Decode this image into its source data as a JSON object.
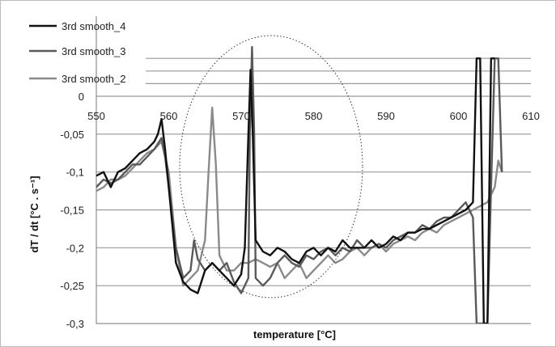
{
  "chart_data": {
    "type": "line",
    "title": "",
    "xlabel": "temperature [°C]",
    "ylabel": "dT / dt [°C . s⁻¹]",
    "xlim": [
      550,
      610
    ],
    "ylim": [
      -0.3,
      0.05
    ],
    "x_ticks": [
      550,
      560,
      570,
      580,
      590,
      600,
      610
    ],
    "y_ticks": [
      0,
      -0.05,
      -0.1,
      -0.15,
      -0.2,
      -0.25,
      -0.3
    ],
    "x_tick_labels": [
      "550",
      "560",
      "570",
      "580",
      "590",
      "600",
      "610"
    ],
    "y_tick_labels": [
      "0",
      "-0,05",
      "-0,1",
      "-0,15",
      "-0,2",
      "-0,25",
      "-0,3"
    ],
    "grid": "horizontal",
    "legend_position": "top-left",
    "annotation": "dotted ellipse around 561–588 °C",
    "series": [
      {
        "name": "3rd smooth_4",
        "color": "#111111",
        "x": [
          550,
          551,
          552,
          553,
          554,
          555,
          556,
          557,
          558,
          558.5,
          559,
          559.5,
          560,
          561,
          562,
          562.5,
          563,
          564,
          565,
          566,
          567,
          568,
          569,
          570,
          570.5,
          571,
          571.3,
          571.6,
          572,
          573,
          574,
          575,
          576,
          577,
          578,
          579,
          580,
          581,
          582,
          583,
          584,
          585,
          586,
          587,
          588,
          589,
          590,
          591,
          592,
          593,
          594,
          595,
          596,
          597,
          598,
          599,
          600,
          601,
          602,
          602.5,
          603,
          603.5,
          604,
          604.5,
          605
        ],
        "y": [
          -0.105,
          -0.1,
          -0.12,
          -0.1,
          -0.095,
          -0.085,
          -0.075,
          -0.07,
          -0.06,
          -0.05,
          -0.03,
          -0.07,
          -0.12,
          -0.22,
          -0.245,
          -0.25,
          -0.255,
          -0.26,
          -0.23,
          -0.22,
          -0.23,
          -0.24,
          -0.25,
          -0.235,
          -0.2,
          -0.05,
          0.035,
          -0.05,
          -0.19,
          -0.205,
          -0.21,
          -0.2,
          -0.205,
          -0.215,
          -0.22,
          -0.205,
          -0.2,
          -0.21,
          -0.2,
          -0.205,
          -0.19,
          -0.2,
          -0.2,
          -0.2,
          -0.19,
          -0.2,
          -0.195,
          -0.185,
          -0.19,
          -0.18,
          -0.18,
          -0.175,
          -0.175,
          -0.17,
          -0.165,
          -0.16,
          -0.155,
          -0.15,
          -0.14,
          0.05,
          0.05,
          -0.3,
          -0.3,
          0.05,
          0.05
        ]
      },
      {
        "name": "3rd smooth_3",
        "color": "#5a5a5a",
        "x": [
          550,
          551,
          552,
          553,
          554,
          555,
          556,
          557,
          558,
          559,
          559.5,
          560,
          561,
          562,
          563,
          563.5,
          564,
          565,
          566,
          567,
          568,
          569,
          570,
          571,
          571.2,
          571.5,
          571.8,
          572,
          573,
          574,
          575,
          576,
          577,
          578,
          579,
          580,
          581,
          582,
          583,
          584,
          585,
          586,
          587,
          588,
          589,
          590,
          591,
          592,
          593,
          594,
          595,
          596,
          597,
          598,
          599,
          600,
          601,
          602,
          602.5,
          603,
          604,
          604.5,
          605,
          605.5,
          606
        ],
        "y": [
          -0.12,
          -0.11,
          -0.115,
          -0.11,
          -0.1,
          -0.09,
          -0.09,
          -0.08,
          -0.07,
          -0.055,
          -0.08,
          -0.12,
          -0.2,
          -0.24,
          -0.23,
          -0.19,
          -0.215,
          -0.23,
          -0.22,
          -0.23,
          -0.22,
          -0.245,
          -0.26,
          -0.24,
          -0.05,
          0.065,
          -0.05,
          -0.24,
          -0.25,
          -0.24,
          -0.22,
          -0.21,
          -0.22,
          -0.225,
          -0.21,
          -0.215,
          -0.205,
          -0.2,
          -0.21,
          -0.2,
          -0.205,
          -0.19,
          -0.2,
          -0.2,
          -0.195,
          -0.2,
          -0.19,
          -0.185,
          -0.18,
          -0.18,
          -0.17,
          -0.175,
          -0.165,
          -0.16,
          -0.16,
          -0.15,
          -0.14,
          -0.16,
          -0.3,
          -0.3,
          -0.3,
          -0.12,
          0.05,
          0.05,
          -0.1
        ]
      },
      {
        "name": "3rd smooth_2",
        "color": "#8a8a8a",
        "x": [
          550,
          551,
          552,
          553,
          554,
          555,
          556,
          557,
          558,
          559,
          560,
          561,
          562,
          563,
          564,
          565,
          565.5,
          566,
          566.5,
          567,
          568,
          569,
          570,
          571,
          572,
          573,
          574,
          575,
          576,
          577,
          578,
          579,
          580,
          581,
          582,
          583,
          584,
          585,
          586,
          587,
          588,
          589,
          590,
          591,
          592,
          593,
          594,
          595,
          596,
          597,
          598,
          599,
          600,
          601,
          602,
          603,
          604,
          605,
          605.5,
          606
        ],
        "y": [
          -0.125,
          -0.12,
          -0.11,
          -0.11,
          -0.105,
          -0.095,
          -0.085,
          -0.075,
          -0.07,
          -0.06,
          -0.1,
          -0.2,
          -0.25,
          -0.24,
          -0.23,
          -0.19,
          -0.1,
          -0.015,
          -0.09,
          -0.21,
          -0.23,
          -0.23,
          -0.22,
          -0.22,
          -0.215,
          -0.22,
          -0.225,
          -0.22,
          -0.24,
          -0.23,
          -0.22,
          -0.24,
          -0.23,
          -0.22,
          -0.21,
          -0.22,
          -0.215,
          -0.205,
          -0.2,
          -0.21,
          -0.2,
          -0.195,
          -0.205,
          -0.195,
          -0.19,
          -0.185,
          -0.19,
          -0.18,
          -0.175,
          -0.18,
          -0.17,
          -0.165,
          -0.16,
          -0.155,
          -0.15,
          -0.145,
          -0.14,
          -0.12,
          -0.085,
          -0.1
        ]
      }
    ]
  }
}
